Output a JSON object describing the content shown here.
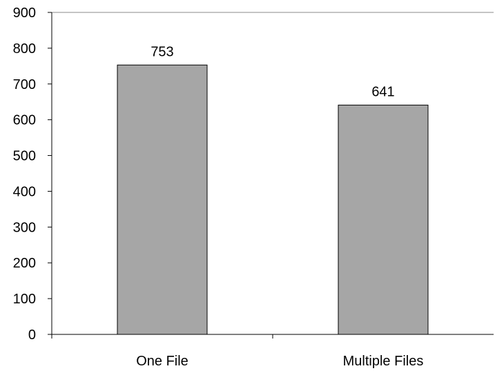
{
  "chart_data": {
    "type": "bar",
    "categories": [
      "One File",
      "Multiple Files"
    ],
    "values": [
      753,
      641
    ],
    "data_labels": [
      "753",
      "641"
    ],
    "y_ticks": [
      "0",
      "100",
      "200",
      "300",
      "400",
      "500",
      "600",
      "700",
      "800",
      "900"
    ],
    "ylim": [
      0,
      900
    ],
    "title": "",
    "xlabel": "",
    "ylabel": "",
    "grid": false,
    "legend": "none",
    "bar_color": "#a6a6a6",
    "bar_outline_color": "#000000"
  }
}
